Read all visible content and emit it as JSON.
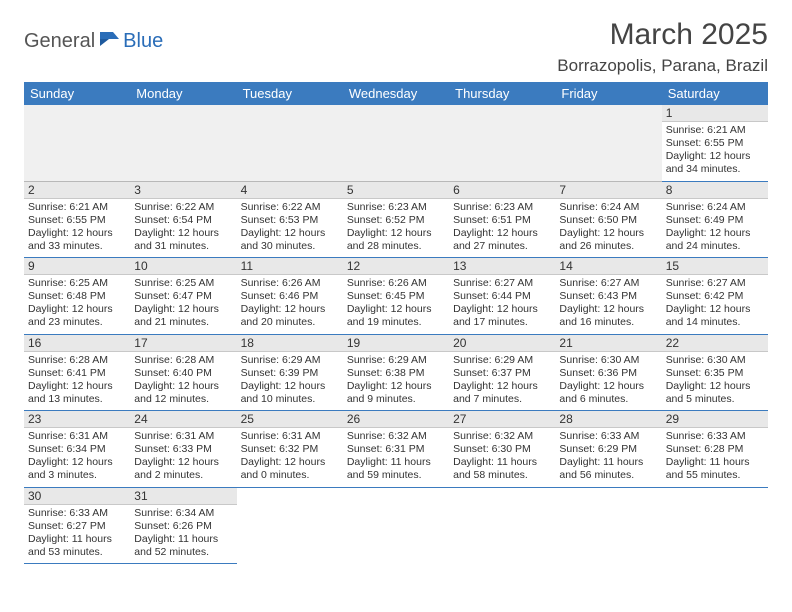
{
  "logo": {
    "part1": "General",
    "part2": "Blue",
    "icon_color": "#2a6db8"
  },
  "title": "March 2025",
  "location": "Borrazopolis, Parana, Brazil",
  "colors": {
    "header_bg": "#3b7bbf",
    "header_text": "#ffffff",
    "cell_border": "#3b7bbf",
    "daynum_bg": "#e8e8e8",
    "text": "#333333",
    "logo_gray": "#555555",
    "logo_blue": "#2a6db8"
  },
  "weekdays": [
    "Sunday",
    "Monday",
    "Tuesday",
    "Wednesday",
    "Thursday",
    "Friday",
    "Saturday"
  ],
  "weeks": [
    [
      null,
      null,
      null,
      null,
      null,
      null,
      {
        "d": "1",
        "sr": "6:21 AM",
        "ss": "6:55 PM",
        "dl": "12 hours and 34 minutes."
      }
    ],
    [
      {
        "d": "2",
        "sr": "6:21 AM",
        "ss": "6:55 PM",
        "dl": "12 hours and 33 minutes."
      },
      {
        "d": "3",
        "sr": "6:22 AM",
        "ss": "6:54 PM",
        "dl": "12 hours and 31 minutes."
      },
      {
        "d": "4",
        "sr": "6:22 AM",
        "ss": "6:53 PM",
        "dl": "12 hours and 30 minutes."
      },
      {
        "d": "5",
        "sr": "6:23 AM",
        "ss": "6:52 PM",
        "dl": "12 hours and 28 minutes."
      },
      {
        "d": "6",
        "sr": "6:23 AM",
        "ss": "6:51 PM",
        "dl": "12 hours and 27 minutes."
      },
      {
        "d": "7",
        "sr": "6:24 AM",
        "ss": "6:50 PM",
        "dl": "12 hours and 26 minutes."
      },
      {
        "d": "8",
        "sr": "6:24 AM",
        "ss": "6:49 PM",
        "dl": "12 hours and 24 minutes."
      }
    ],
    [
      {
        "d": "9",
        "sr": "6:25 AM",
        "ss": "6:48 PM",
        "dl": "12 hours and 23 minutes."
      },
      {
        "d": "10",
        "sr": "6:25 AM",
        "ss": "6:47 PM",
        "dl": "12 hours and 21 minutes."
      },
      {
        "d": "11",
        "sr": "6:26 AM",
        "ss": "6:46 PM",
        "dl": "12 hours and 20 minutes."
      },
      {
        "d": "12",
        "sr": "6:26 AM",
        "ss": "6:45 PM",
        "dl": "12 hours and 19 minutes."
      },
      {
        "d": "13",
        "sr": "6:27 AM",
        "ss": "6:44 PM",
        "dl": "12 hours and 17 minutes."
      },
      {
        "d": "14",
        "sr": "6:27 AM",
        "ss": "6:43 PM",
        "dl": "12 hours and 16 minutes."
      },
      {
        "d": "15",
        "sr": "6:27 AM",
        "ss": "6:42 PM",
        "dl": "12 hours and 14 minutes."
      }
    ],
    [
      {
        "d": "16",
        "sr": "6:28 AM",
        "ss": "6:41 PM",
        "dl": "12 hours and 13 minutes."
      },
      {
        "d": "17",
        "sr": "6:28 AM",
        "ss": "6:40 PM",
        "dl": "12 hours and 12 minutes."
      },
      {
        "d": "18",
        "sr": "6:29 AM",
        "ss": "6:39 PM",
        "dl": "12 hours and 10 minutes."
      },
      {
        "d": "19",
        "sr": "6:29 AM",
        "ss": "6:38 PM",
        "dl": "12 hours and 9 minutes."
      },
      {
        "d": "20",
        "sr": "6:29 AM",
        "ss": "6:37 PM",
        "dl": "12 hours and 7 minutes."
      },
      {
        "d": "21",
        "sr": "6:30 AM",
        "ss": "6:36 PM",
        "dl": "12 hours and 6 minutes."
      },
      {
        "d": "22",
        "sr": "6:30 AM",
        "ss": "6:35 PM",
        "dl": "12 hours and 5 minutes."
      }
    ],
    [
      {
        "d": "23",
        "sr": "6:31 AM",
        "ss": "6:34 PM",
        "dl": "12 hours and 3 minutes."
      },
      {
        "d": "24",
        "sr": "6:31 AM",
        "ss": "6:33 PM",
        "dl": "12 hours and 2 minutes."
      },
      {
        "d": "25",
        "sr": "6:31 AM",
        "ss": "6:32 PM",
        "dl": "12 hours and 0 minutes."
      },
      {
        "d": "26",
        "sr": "6:32 AM",
        "ss": "6:31 PM",
        "dl": "11 hours and 59 minutes."
      },
      {
        "d": "27",
        "sr": "6:32 AM",
        "ss": "6:30 PM",
        "dl": "11 hours and 58 minutes."
      },
      {
        "d": "28",
        "sr": "6:33 AM",
        "ss": "6:29 PM",
        "dl": "11 hours and 56 minutes."
      },
      {
        "d": "29",
        "sr": "6:33 AM",
        "ss": "6:28 PM",
        "dl": "11 hours and 55 minutes."
      }
    ],
    [
      {
        "d": "30",
        "sr": "6:33 AM",
        "ss": "6:27 PM",
        "dl": "11 hours and 53 minutes."
      },
      {
        "d": "31",
        "sr": "6:34 AM",
        "ss": "6:26 PM",
        "dl": "11 hours and 52 minutes."
      },
      null,
      null,
      null,
      null,
      null
    ]
  ],
  "labels": {
    "sunrise": "Sunrise:",
    "sunset": "Sunset:",
    "daylight": "Daylight:"
  }
}
